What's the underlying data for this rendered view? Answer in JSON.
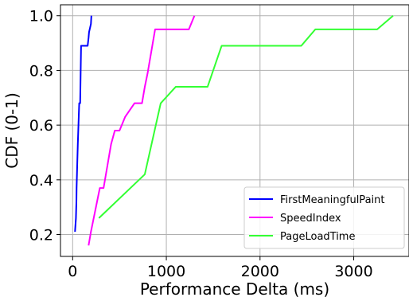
{
  "chart_data": {
    "type": "line",
    "xlabel": "Performance Delta (ms)",
    "ylabel": "CDF (0-1)",
    "xlim": [
      -130,
      3590
    ],
    "ylim": [
      0.12,
      1.04
    ],
    "xticks": [
      0,
      1000,
      2000,
      3000
    ],
    "xtick_labels": [
      "0",
      "1000",
      "2000",
      "3000"
    ],
    "yticks": [
      0.2,
      0.4,
      0.6,
      0.8,
      1.0
    ],
    "ytick_labels": [
      "0.2",
      "0.4",
      "0.6",
      "0.8",
      "1.0"
    ],
    "grid": true,
    "legend_position": "bottom-right",
    "series": [
      {
        "name": "FirstMeaningfulPaint",
        "color": "#0000ff",
        "x": [
          25,
          35,
          40,
          42,
          50,
          55,
          60,
          65,
          70,
          80,
          90,
          160,
          170,
          175,
          195,
          200
        ],
        "y": [
          0.21,
          0.26,
          0.32,
          0.37,
          0.47,
          0.53,
          0.58,
          0.63,
          0.68,
          0.68,
          0.89,
          0.89,
          0.92,
          0.94,
          0.97,
          1.0
        ]
      },
      {
        "name": "SpeedIndex",
        "color": "#ff00ff",
        "x": [
          170,
          195,
          290,
          330,
          410,
          450,
          500,
          560,
          660,
          740,
          770,
          800,
          880,
          1240,
          1300
        ],
        "y": [
          0.16,
          0.21,
          0.37,
          0.37,
          0.53,
          0.58,
          0.58,
          0.63,
          0.68,
          0.68,
          0.74,
          0.79,
          0.95,
          0.95,
          1.0
        ]
      },
      {
        "name": "PageLoadTime",
        "color": "#33ff33",
        "x": [
          280,
          770,
          940,
          1100,
          1440,
          1590,
          2440,
          2590,
          3250,
          3420
        ],
        "y": [
          0.26,
          0.42,
          0.68,
          0.74,
          0.74,
          0.89,
          0.89,
          0.95,
          0.95,
          1.0
        ]
      }
    ]
  }
}
